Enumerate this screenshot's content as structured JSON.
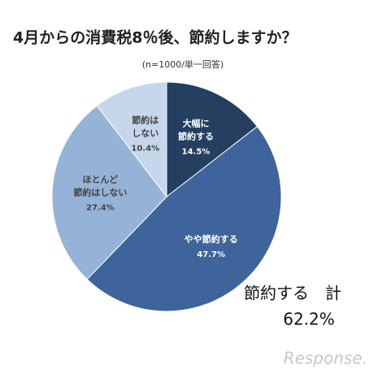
{
  "chart_data": {
    "type": "pie",
    "title": "4月からの消費税8％後、節約しますか？",
    "subtitle": "(n=1000/単一回答)",
    "categories": [
      "大幅に\n節約する",
      "やや節約する",
      "ほとんど\n節約はしない",
      "節約は\nしない"
    ],
    "values": [
      14.5,
      47.7,
      27.4,
      10.4
    ],
    "value_labels": [
      "14.5%",
      "47.7%",
      "27.4%",
      "10.4%"
    ],
    "colors": [
      "#243f60",
      "#3e649b",
      "#95b3d7",
      "#c6d6eb"
    ],
    "annotation": {
      "text": "節約する　計",
      "total": "62.2%"
    },
    "watermark": "Response."
  }
}
